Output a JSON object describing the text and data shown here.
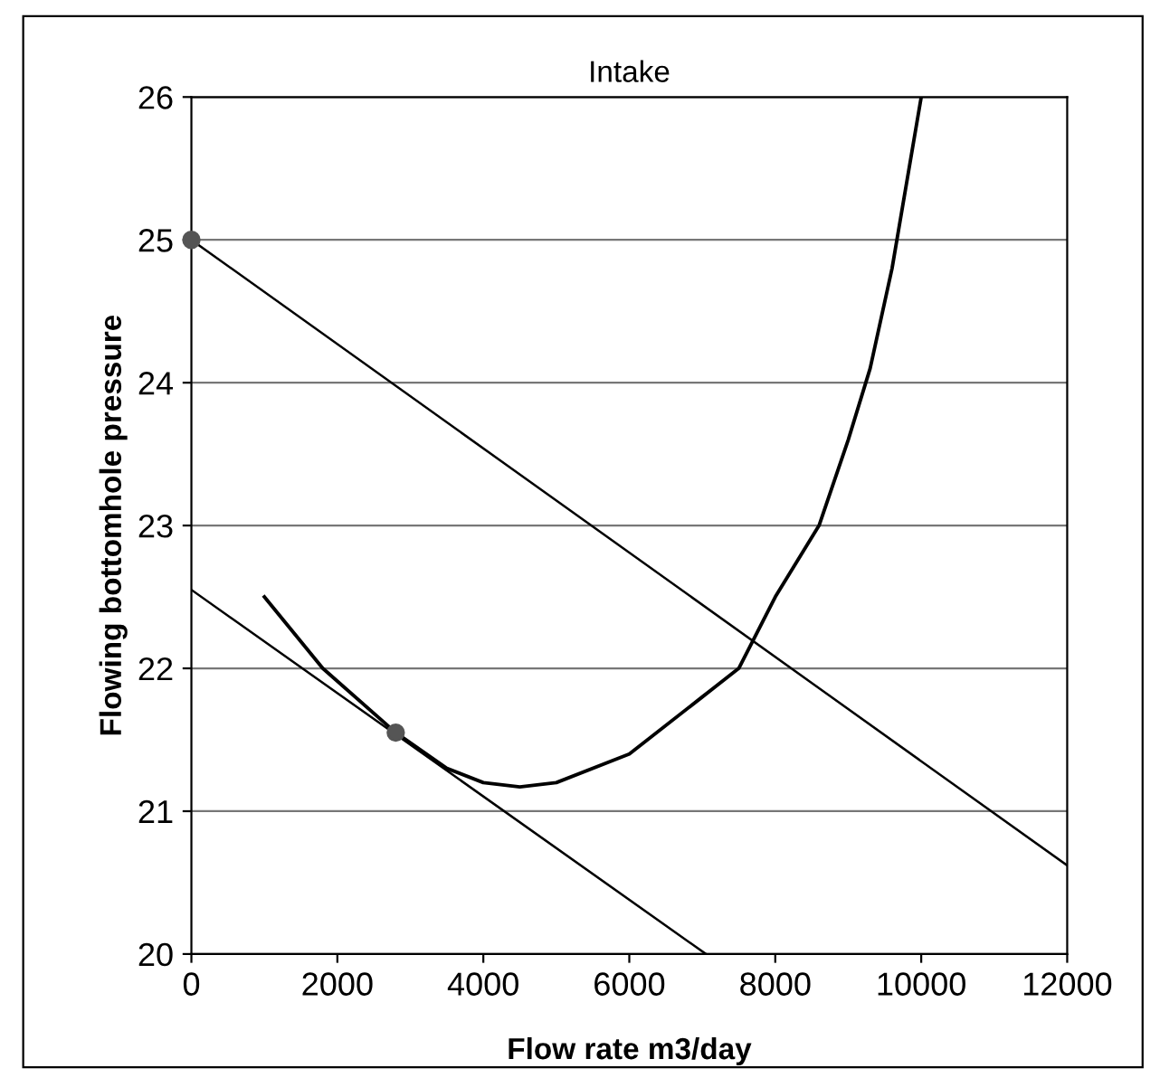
{
  "chart_data": {
    "type": "line",
    "title": "Intake",
    "xlabel": "Flow rate m3/day",
    "ylabel": "Flowing bottomhole pressure",
    "xlim": [
      0,
      12000
    ],
    "ylim": [
      20,
      26
    ],
    "xticks": [
      0,
      2000,
      4000,
      6000,
      8000,
      10000,
      12000
    ],
    "yticks": [
      20,
      21,
      22,
      23,
      24,
      25,
      26
    ],
    "grid": "y",
    "legend": false,
    "series": [
      {
        "color": "#000000",
        "x": [
          1000,
          1800,
          2800,
          3500,
          4000,
          4500,
          5000,
          6000,
          7000,
          7500,
          8000,
          8600,
          9000,
          9300,
          9600,
          10000
        ],
        "values": [
          22.5,
          22.0,
          21.55,
          21.3,
          21.2,
          21.17,
          21.2,
          21.4,
          21.8,
          22.0,
          22.5,
          23.0,
          23.6,
          24.1,
          24.8,
          26
        ]
      },
      {
        "color": "#000000",
        "x": [
          0,
          12000
        ],
        "values": [
          25,
          20.62
        ]
      },
      {
        "color": "#000000",
        "x": [
          0,
          7050
        ],
        "values": [
          22.55,
          20
        ]
      },
      {
        "type": "scatter",
        "color": "#555555",
        "marker": "circle",
        "x": [
          0,
          2800
        ],
        "values": [
          25,
          21.55
        ]
      }
    ]
  }
}
